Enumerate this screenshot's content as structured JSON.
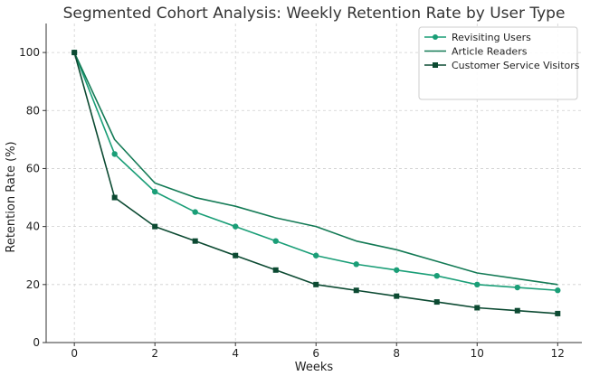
{
  "chart_data": {
    "type": "line",
    "title": "Segmented Cohort Analysis: Weekly Retention Rate by User Type",
    "xlabel": "Weeks",
    "ylabel": "Retention Rate (%)",
    "xlim": [
      -0.7,
      12.6
    ],
    "ylim": [
      0,
      110
    ],
    "xticks": [
      0,
      2,
      4,
      6,
      8,
      10,
      12
    ],
    "yticks": [
      0,
      20,
      40,
      60,
      80,
      100
    ],
    "grid": true,
    "legend_position": "top-right",
    "x": [
      0,
      1,
      2,
      3,
      4,
      5,
      6,
      7,
      8,
      9,
      10,
      11,
      12
    ],
    "series": [
      {
        "name": "Revisiting Users",
        "color": "#1a9e77",
        "marker": "circle",
        "values": [
          100,
          65,
          52,
          45,
          40,
          35,
          30,
          27,
          25,
          23,
          20,
          19,
          18
        ]
      },
      {
        "name": "Article Readers",
        "color": "#137a55",
        "marker": "none",
        "values": [
          100,
          70,
          55,
          50,
          47,
          43,
          40,
          35,
          32,
          28,
          24,
          22,
          20
        ]
      },
      {
        "name": "Customer Service Visitors",
        "color": "#0c4a32",
        "marker": "square",
        "values": [
          100,
          50,
          40,
          35,
          30,
          25,
          20,
          18,
          16,
          14,
          12,
          11,
          10
        ]
      }
    ]
  }
}
